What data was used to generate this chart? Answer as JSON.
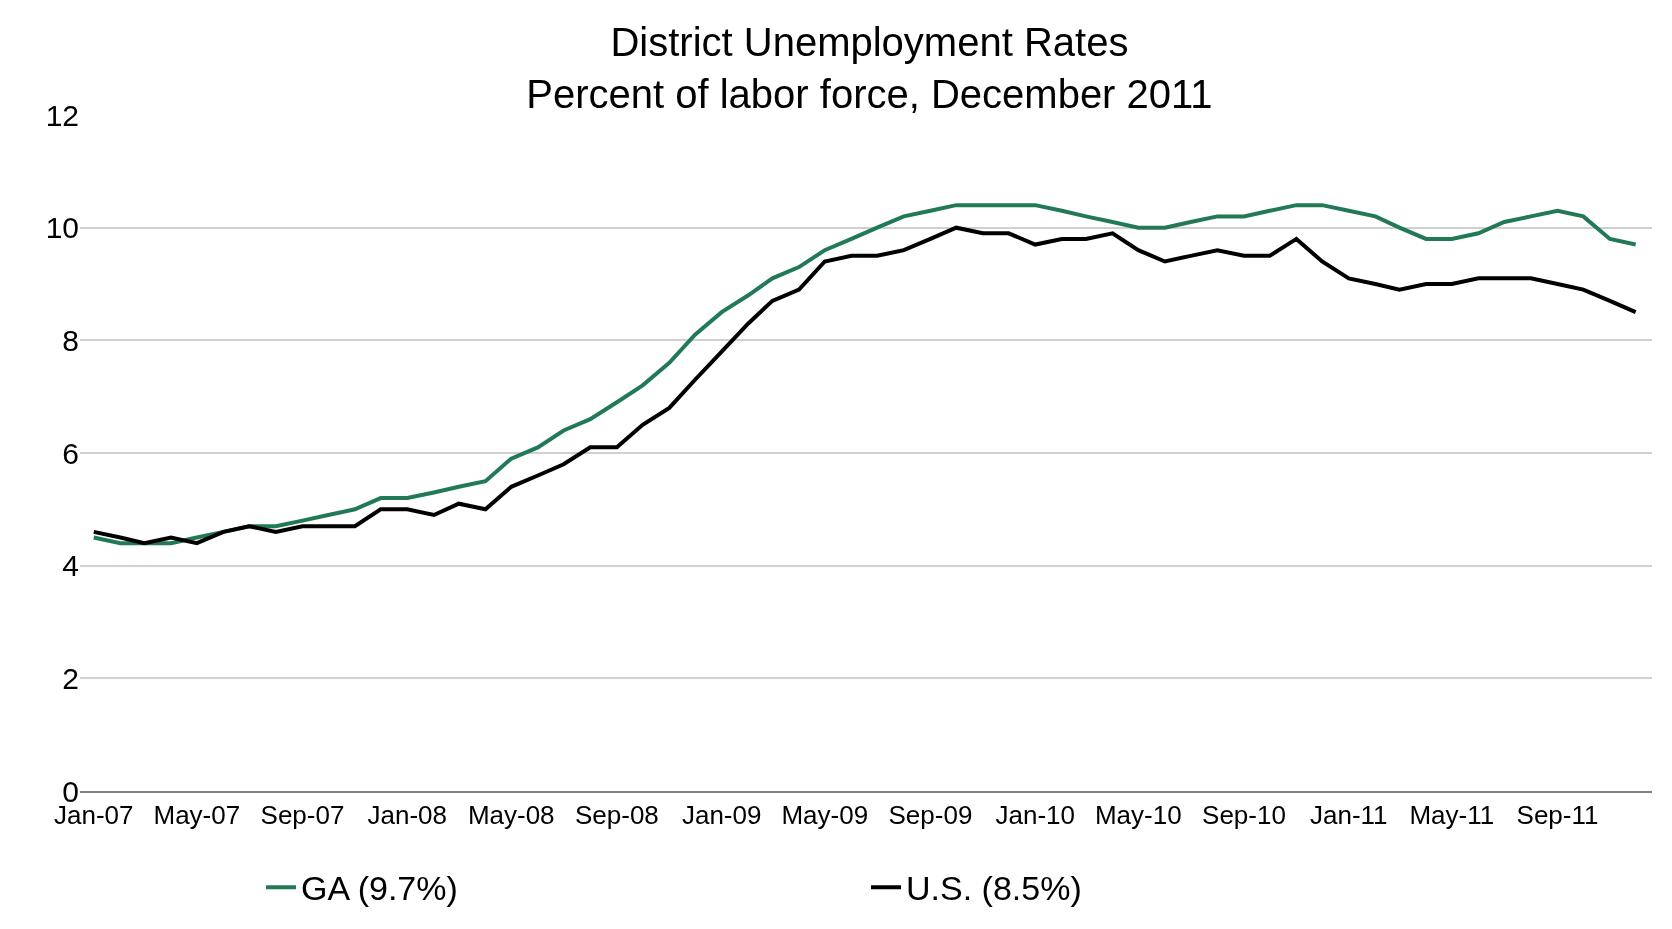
{
  "chart_data": {
    "type": "line",
    "title": "District Unemployment Rates",
    "subtitle": "Percent of labor force, December 2011",
    "x": [
      "2007-01",
      "2007-02",
      "2007-03",
      "2007-04",
      "2007-05",
      "2007-06",
      "2007-07",
      "2007-08",
      "2007-09",
      "2007-10",
      "2007-11",
      "2007-12",
      "2008-01",
      "2008-02",
      "2008-03",
      "2008-04",
      "2008-05",
      "2008-06",
      "2008-07",
      "2008-08",
      "2008-09",
      "2008-10",
      "2008-11",
      "2008-12",
      "2009-01",
      "2009-02",
      "2009-03",
      "2009-04",
      "2009-05",
      "2009-06",
      "2009-07",
      "2009-08",
      "2009-09",
      "2009-10",
      "2009-11",
      "2009-12",
      "2010-01",
      "2010-02",
      "2010-03",
      "2010-04",
      "2010-05",
      "2010-06",
      "2010-07",
      "2010-08",
      "2010-09",
      "2010-10",
      "2010-11",
      "2010-12",
      "2011-01",
      "2011-02",
      "2011-03",
      "2011-04",
      "2011-05",
      "2011-06",
      "2011-07",
      "2011-08",
      "2011-09",
      "2011-10",
      "2011-11",
      "2011-12"
    ],
    "series": [
      {
        "name": "GA (9.7%)",
        "color": "#217a55",
        "values": [
          4.5,
          4.4,
          4.4,
          4.4,
          4.5,
          4.6,
          4.7,
          4.7,
          4.8,
          4.9,
          5.0,
          5.2,
          5.2,
          5.3,
          5.4,
          5.5,
          5.9,
          6.1,
          6.4,
          6.6,
          6.9,
          7.2,
          7.6,
          8.1,
          8.5,
          8.8,
          9.1,
          9.3,
          9.6,
          9.8,
          10.0,
          10.2,
          10.3,
          10.4,
          10.4,
          10.4,
          10.4,
          10.3,
          10.2,
          10.1,
          10.0,
          10.0,
          10.1,
          10.2,
          10.2,
          10.3,
          10.4,
          10.4,
          10.3,
          10.2,
          10.0,
          9.8,
          9.8,
          9.9,
          10.1,
          10.2,
          10.3,
          10.2,
          9.8,
          9.7
        ]
      },
      {
        "name": "U.S. (8.5%)",
        "color": "#000000",
        "values": [
          4.6,
          4.5,
          4.4,
          4.5,
          4.4,
          4.6,
          4.7,
          4.6,
          4.7,
          4.7,
          4.7,
          5.0,
          5.0,
          4.9,
          5.1,
          5.0,
          5.4,
          5.6,
          5.8,
          6.1,
          6.1,
          6.5,
          6.8,
          7.3,
          7.8,
          8.3,
          8.7,
          8.9,
          9.4,
          9.5,
          9.5,
          9.6,
          9.8,
          10.0,
          9.9,
          9.9,
          9.7,
          9.8,
          9.8,
          9.9,
          9.6,
          9.4,
          9.5,
          9.6,
          9.5,
          9.5,
          9.8,
          9.4,
          9.1,
          9.0,
          8.9,
          9.0,
          9.0,
          9.1,
          9.1,
          9.1,
          9.0,
          8.9,
          8.7,
          8.5
        ]
      }
    ],
    "xlim": [
      "2006-12-16",
      "2011-12-20"
    ],
    "xticks": [
      {
        "value": "2007-01",
        "label": "Jan-07"
      },
      {
        "value": "2007-05",
        "label": "May-07"
      },
      {
        "value": "2007-09",
        "label": "Sep-07"
      },
      {
        "value": "2008-01",
        "label": "Jan-08"
      },
      {
        "value": "2008-05",
        "label": "May-08"
      },
      {
        "value": "2008-09",
        "label": "Sep-08"
      },
      {
        "value": "2009-01",
        "label": "Jan-09"
      },
      {
        "value": "2009-05",
        "label": "May-09"
      },
      {
        "value": "2009-09",
        "label": "Sep-09"
      },
      {
        "value": "2010-01",
        "label": "Jan-10"
      },
      {
        "value": "2010-05",
        "label": "May-10"
      },
      {
        "value": "2010-09",
        "label": "Sep-10"
      },
      {
        "value": "2011-01",
        "label": "Jan-11"
      },
      {
        "value": "2011-05",
        "label": "May-11"
      },
      {
        "value": "2011-09",
        "label": "Sep-11"
      }
    ],
    "ylim": [
      0,
      12
    ],
    "yticks": [
      0,
      2,
      4,
      6,
      8,
      10,
      12
    ],
    "grid": "y",
    "legend": "bottom",
    "marker": "none",
    "line_style": "solid"
  }
}
